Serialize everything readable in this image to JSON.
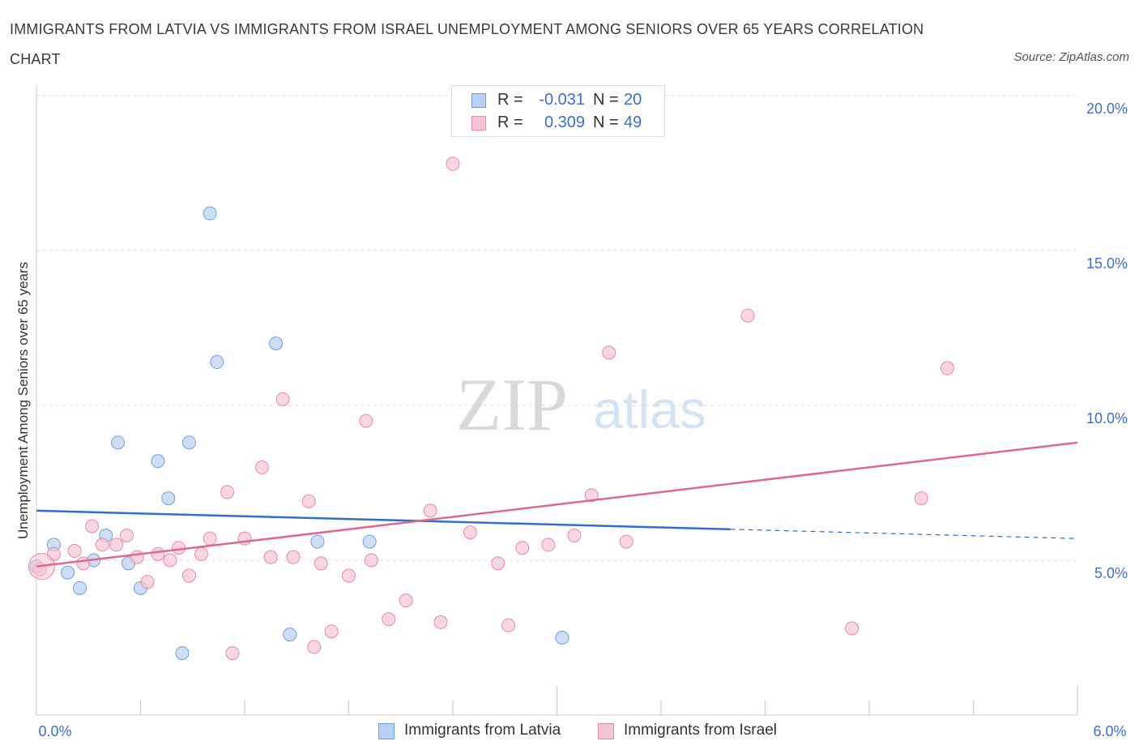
{
  "title": "IMMIGRANTS FROM LATVIA VS IMMIGRANTS FROM ISRAEL UNEMPLOYMENT AMONG SENIORS OVER 65 YEARS CORRELATION CHART",
  "source": "Source: ZipAtlas.com",
  "watermark": {
    "zip": "ZIP",
    "atlas": "atlas"
  },
  "stats": [
    {
      "r_label": "R =",
      "r_value": "-0.031",
      "n_label": "N =",
      "n_value": "20"
    },
    {
      "r_label": "R =",
      "r_value": "0.309",
      "n_label": "N =",
      "n_value": "49"
    }
  ],
  "colors": {
    "latvia_fill": "#b8d0f5",
    "latvia_stroke": "#6f9ee0",
    "latvia_line": "#2f6fcc",
    "israel_fill": "#f7c4d3",
    "israel_stroke": "#e68aa6",
    "israel_line": "#e0678f",
    "axis_label": "#3b6fcf",
    "grid": "#dddddd"
  },
  "chart_data": {
    "type": "scatter",
    "title": "IMMIGRANTS FROM LATVIA VS IMMIGRANTS FROM ISRAEL UNEMPLOYMENT AMONG SENIORS OVER 65 YEARS CORRELATION CHART",
    "xlabel": "",
    "ylabel": "Unemployment Among Seniors over 65 years",
    "xlim": [
      0,
      6
    ],
    "ylim": [
      0,
      20
    ],
    "x_tick_labels": [
      "0.0%",
      "6.0%"
    ],
    "y_ticks": [
      5,
      10,
      15,
      20
    ],
    "y_tick_labels": [
      "5.0%",
      "10.0%",
      "15.0%",
      "20.0%"
    ],
    "grid": true,
    "legend_position": "bottom-center",
    "series": [
      {
        "name": "Immigrants from Latvia",
        "points": [
          [
            0.0,
            4.8
          ],
          [
            0.1,
            5.5
          ],
          [
            0.18,
            4.6
          ],
          [
            0.25,
            4.1
          ],
          [
            0.33,
            5.0
          ],
          [
            0.4,
            5.8
          ],
          [
            0.47,
            8.8
          ],
          [
            0.53,
            4.9
          ],
          [
            0.6,
            4.1
          ],
          [
            0.7,
            8.2
          ],
          [
            0.76,
            7.0
          ],
          [
            0.84,
            2.0
          ],
          [
            0.88,
            8.8
          ],
          [
            1.0,
            16.2
          ],
          [
            1.04,
            11.4
          ],
          [
            1.38,
            12.0
          ],
          [
            1.46,
            2.6
          ],
          [
            1.62,
            5.6
          ],
          [
            1.92,
            5.6
          ],
          [
            3.03,
            2.5
          ]
        ],
        "trend": {
          "x_solid": [
            0.0,
            4.0
          ],
          "y_solid": [
            6.6,
            6.0
          ],
          "x_dashed": [
            4.0,
            6.0
          ],
          "y_dashed": [
            6.0,
            5.7
          ]
        }
      },
      {
        "name": "Immigrants from Israel",
        "points": [
          [
            0.02,
            4.7
          ],
          [
            0.1,
            5.2
          ],
          [
            0.22,
            5.3
          ],
          [
            0.27,
            4.9
          ],
          [
            0.32,
            6.1
          ],
          [
            0.38,
            5.5
          ],
          [
            0.46,
            5.5
          ],
          [
            0.52,
            5.8
          ],
          [
            0.58,
            5.1
          ],
          [
            0.64,
            4.3
          ],
          [
            0.7,
            5.2
          ],
          [
            0.77,
            5.0
          ],
          [
            0.82,
            5.4
          ],
          [
            0.88,
            4.5
          ],
          [
            0.95,
            5.2
          ],
          [
            1.0,
            5.7
          ],
          [
            1.1,
            7.2
          ],
          [
            1.13,
            2.0
          ],
          [
            1.2,
            5.7
          ],
          [
            1.3,
            8.0
          ],
          [
            1.35,
            5.1
          ],
          [
            1.42,
            10.2
          ],
          [
            1.48,
            5.1
          ],
          [
            1.57,
            6.9
          ],
          [
            1.6,
            2.2
          ],
          [
            1.64,
            4.9
          ],
          [
            1.7,
            2.7
          ],
          [
            1.8,
            4.5
          ],
          [
            1.9,
            9.5
          ],
          [
            1.93,
            5.0
          ],
          [
            2.03,
            3.1
          ],
          [
            2.13,
            3.7
          ],
          [
            2.27,
            6.6
          ],
          [
            2.33,
            3.0
          ],
          [
            2.4,
            17.8
          ],
          [
            2.5,
            5.9
          ],
          [
            2.66,
            4.9
          ],
          [
            2.72,
            2.9
          ],
          [
            2.8,
            5.4
          ],
          [
            2.95,
            5.5
          ],
          [
            3.1,
            5.8
          ],
          [
            3.2,
            7.1
          ],
          [
            3.3,
            11.7
          ],
          [
            3.4,
            5.6
          ],
          [
            4.1,
            12.9
          ],
          [
            4.7,
            2.8
          ],
          [
            5.1,
            7.0
          ],
          [
            5.25,
            11.2
          ],
          [
            0.03,
            4.8
          ]
        ],
        "trend": {
          "x": [
            0.0,
            6.0
          ],
          "y": [
            4.8,
            8.8
          ]
        }
      }
    ]
  },
  "legend": [
    {
      "label": "Immigrants from Latvia"
    },
    {
      "label": "Immigrants from Israel"
    }
  ]
}
